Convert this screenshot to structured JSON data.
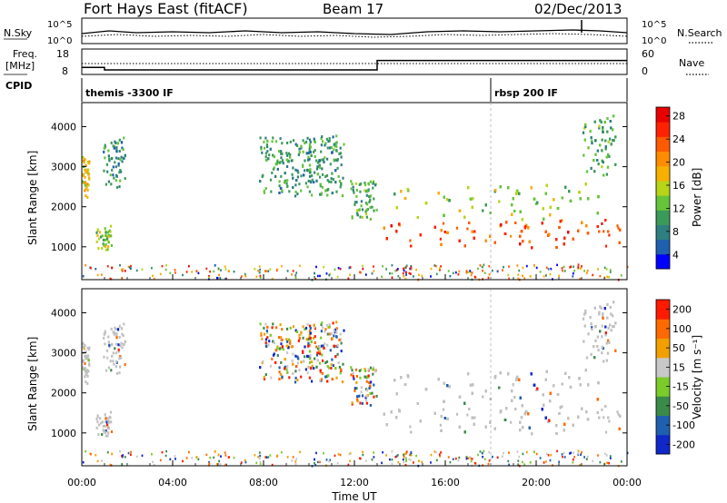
{
  "header": {
    "site": "Fort Hays East (fitACF)",
    "beam": "Beam 17",
    "date": "02/Dec/2013"
  },
  "noise_panel": {
    "left_label": "N.Sky",
    "right_label": "N.Search",
    "left_ticks": [
      "10^5",
      "10^0"
    ],
    "right_ticks": [
      "10^5",
      "10^0"
    ],
    "series_name": "N.Search"
  },
  "freq_panel": {
    "left_label_line1": "Freq.",
    "left_label_line2": "[MHz]",
    "left_ticks": [
      "18",
      "8"
    ],
    "right_ticks": [
      "60",
      "0"
    ],
    "right_label": "Nave",
    "cpid_label": "CPID"
  },
  "cpid_segments": [
    {
      "name": "themis -3300 IF",
      "start_hour": 0,
      "end_hour": 18
    },
    {
      "name": "rbsp 200 IF",
      "start_hour": 18,
      "end_hour": 24
    }
  ],
  "power_panel": {
    "ylabel": "Slant Range [km]",
    "yticks": [
      "4000",
      "3000",
      "2000",
      "1000"
    ],
    "colorbar_label": "Power [dB]",
    "colorbar_ticks": [
      "28",
      "24",
      "20",
      "16",
      "12",
      "8",
      "4"
    ],
    "colors": [
      "#0000ff",
      "#1f5fb0",
      "#2e7f7f",
      "#3a9a5a",
      "#66c43a",
      "#b8d418",
      "#f6b000",
      "#ff8c00",
      "#ff5a00",
      "#ff2200",
      "#e80000"
    ]
  },
  "velocity_panel": {
    "ylabel": "Slant Range [km]",
    "yticks": [
      "4000",
      "3000",
      "2000",
      "1000"
    ],
    "colorbar_label": "Velocity [m s⁻¹]",
    "colorbar_ticks": [
      "200",
      "100",
      "50",
      "15",
      "-15",
      "-50",
      "-100",
      "-200"
    ],
    "colors": [
      "#1028c8",
      "#1f5fb0",
      "#3a8a4a",
      "#7acc2a",
      "#c8c8c8",
      "#f2a000",
      "#ff6a00",
      "#ff1a00"
    ],
    "ground_scatter_color": "#c0c0c0"
  },
  "x_axis": {
    "label": "Time UT",
    "ticks": [
      "00:00",
      "04:00",
      "08:00",
      "12:00",
      "16:00",
      "20:00",
      "00:00"
    ]
  },
  "chart_data": {
    "type": "heatmap",
    "title": "Fort Hays East (fitACF)",
    "subtitle": "Beam 17",
    "xlabel": "Time UT",
    "ylabel": "Slant Range [km]",
    "xlim_hours": [
      0,
      24
    ],
    "ylim_km": [
      180,
      4600
    ],
    "power_colorbar": {
      "label": "Power [dB]",
      "range": [
        0,
        32
      ],
      "ticks": [
        4,
        8,
        12,
        16,
        20,
        24,
        28
      ]
    },
    "velocity_colorbar": {
      "label": "Velocity [m s⁻¹]",
      "ticks": [
        200,
        100,
        50,
        15,
        -15,
        -50,
        -100,
        -200
      ]
    },
    "freq_series": [
      {
        "start_hour": 0.0,
        "end_hour": 1.0,
        "freq_mhz": 10.8
      },
      {
        "start_hour": 1.0,
        "end_hour": 13.0,
        "freq_mhz": 9.8
      },
      {
        "start_hour": 13.0,
        "end_hour": 24.0,
        "freq_mhz": 13.5
      }
    ],
    "scatter_regions": [
      {
        "feature": "early echoes",
        "hour_start": 0.0,
        "hour_end": 0.3,
        "range_start_km": 2200,
        "range_end_km": 3300,
        "power_db": 18,
        "ground_scatter": true
      },
      {
        "feature": "early echoes",
        "hour_start": 0.9,
        "hour_end": 1.9,
        "range_start_km": 2500,
        "range_end_km": 3750,
        "power_db": 8,
        "ground_scatter": true
      },
      {
        "feature": "early echoes",
        "hour_start": 0.6,
        "hour_end": 1.3,
        "range_start_km": 950,
        "range_end_km": 1550,
        "power_db": 14,
        "ground_scatter": true
      },
      {
        "feature": "mid-day band",
        "hour_start": 7.8,
        "hour_end": 11.5,
        "range_start_km": 2300,
        "range_end_km": 3800,
        "power_db": 9,
        "ground_scatter": false
      },
      {
        "feature": "descending band",
        "hour_start": 11.8,
        "hour_end": 13.0,
        "range_start_km": 1700,
        "range_end_km": 2700,
        "power_db": 10,
        "ground_scatter": false
      },
      {
        "feature": "night-time ground scatter",
        "hour_start": 13.0,
        "hour_end": 24.0,
        "range_start_km": 1000,
        "range_end_km": 1700,
        "power_db": 26,
        "ground_scatter": true
      },
      {
        "feature": "night-time ground scatter",
        "hour_start": 13.5,
        "hour_end": 23.0,
        "range_start_km": 1700,
        "range_end_km": 2600,
        "power_db": 14,
        "ground_scatter": true
      },
      {
        "feature": "late echoes",
        "hour_start": 22.0,
        "hour_end": 23.5,
        "range_start_km": 2800,
        "range_end_km": 4300,
        "power_db": 10,
        "ground_scatter": true
      }
    ]
  }
}
